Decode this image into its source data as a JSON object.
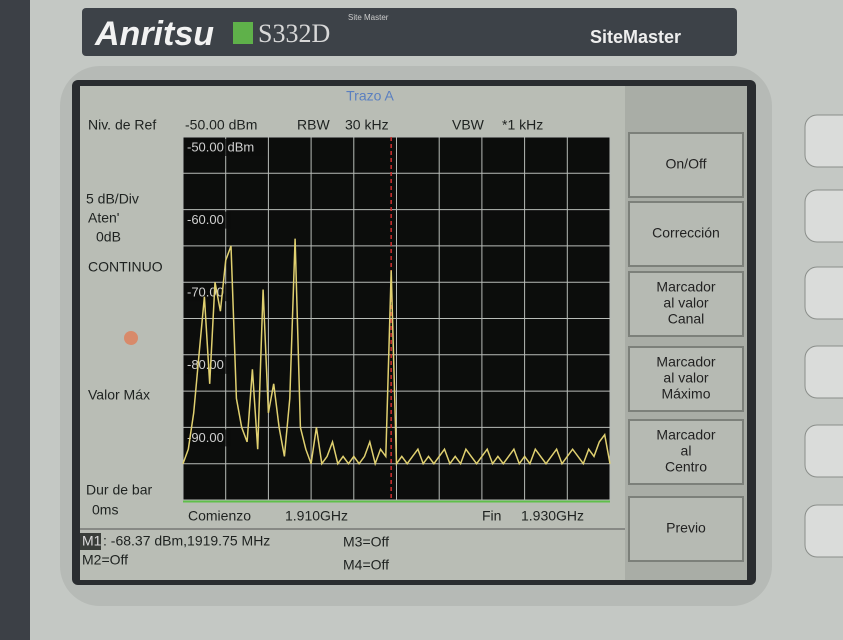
{
  "device": {
    "brand": "Anritsu",
    "model": "S332D",
    "model_sub": "Site Master",
    "product": "SiteMaster"
  },
  "screen": {
    "trace_title": "Trazo A",
    "ref_label": "Niv. de Ref",
    "ref_value": "-50.00 dBm",
    "rbw_label": "RBW",
    "rbw_value": "30 kHz",
    "vbw_label": "VBW",
    "vbw_value": "*1 kHz",
    "scale": "5 dB/Div",
    "atten_label": "Aten'",
    "atten_value": "0dB",
    "sweep_mode": "CONTINUO",
    "detection": "Valor Máx",
    "sweep_time_label": "Dur de bar",
    "sweep_time_value": "0ms",
    "start_label": "Comienzo",
    "start_value": "1.910GHz",
    "stop_label": "Fin",
    "stop_value": "1.930GHz",
    "marker_tag": "M1",
    "marker_readout": ": -68.37 dBm,1919.75 MHz",
    "m2": "M2=Off",
    "m3": "M3=Off",
    "m4": "M4=Off",
    "softkeys": [
      [
        "On/Off"
      ],
      [
        "Corrección"
      ],
      [
        "Marcador",
        "al valor",
        "Canal"
      ],
      [
        "Marcador",
        "al valor",
        "Máximo"
      ],
      [
        "Marcador",
        "al",
        "Centro"
      ],
      [
        "Previo"
      ]
    ]
  },
  "chart_data": {
    "type": "line",
    "color": "#e0d070",
    "x": [
      1.91,
      1.91025,
      1.9105,
      1.91075,
      1.911,
      1.91125,
      1.9115,
      1.91175,
      1.912,
      1.91225,
      1.9125,
      1.91275,
      1.913,
      1.91325,
      1.9135,
      1.91375,
      1.914,
      1.91425,
      1.9145,
      1.91475,
      1.915,
      1.91525,
      1.9155,
      1.91575,
      1.916,
      1.91625,
      1.9165,
      1.91675,
      1.917,
      1.91725,
      1.9175,
      1.91775,
      1.918,
      1.91825,
      1.9185,
      1.91875,
      1.919,
      1.91925,
      1.9195,
      1.91975,
      1.92,
      1.92025,
      1.9205,
      1.92075,
      1.921,
      1.92125,
      1.9215,
      1.92175,
      1.922,
      1.92225,
      1.9225,
      1.92275,
      1.923,
      1.92325,
      1.9235,
      1.92375,
      1.924,
      1.92425,
      1.9245,
      1.92475,
      1.925,
      1.92525,
      1.9255,
      1.92575,
      1.926,
      1.92625,
      1.9265,
      1.92675,
      1.927,
      1.92725,
      1.9275,
      1.92775,
      1.928,
      1.92825,
      1.9285,
      1.92875,
      1.929,
      1.92925,
      1.9295,
      1.92975,
      1.93
    ],
    "values": [
      -95,
      -93,
      -88,
      -80,
      -72,
      -84,
      -70,
      -74,
      -67,
      -65,
      -86,
      -90,
      -92,
      -82,
      -93,
      -71,
      -88,
      -84,
      -90,
      -94,
      -86,
      -64,
      -90,
      -93,
      -95,
      -90,
      -95,
      -94,
      -92,
      -95,
      -94,
      -95,
      -94,
      -95,
      -94,
      -92,
      -95,
      -93,
      -94,
      -68.37,
      -95,
      -94,
      -95,
      -94,
      -93,
      -95,
      -94,
      -95,
      -94,
      -93,
      -95,
      -94,
      -95,
      -93,
      -94,
      -95,
      -94,
      -93,
      -95,
      -94,
      -95,
      -94,
      -93,
      -95,
      -94,
      -95,
      -93,
      -94,
      -95,
      -94,
      -93,
      -95,
      -94,
      -93,
      -94,
      -95,
      -93,
      -94,
      -92,
      -91,
      -95
    ],
    "xlim": [
      1.91,
      1.93
    ],
    "ylim": [
      -100,
      -50
    ],
    "yticks": [
      {
        "value": -50,
        "label": "-50.00 dBm"
      },
      {
        "value": -60,
        "label": "-60.00"
      },
      {
        "value": -70,
        "label": "-70.00"
      },
      {
        "value": -80,
        "label": "-80.00"
      },
      {
        "value": -90,
        "label": "-90.00"
      }
    ],
    "ygrid": [
      -50,
      -55,
      -60,
      -65,
      -70,
      -75,
      -80,
      -85,
      -90,
      -95,
      -100
    ],
    "xgrid": [
      1.91,
      1.912,
      1.914,
      1.916,
      1.918,
      1.92,
      1.922,
      1.924,
      1.926,
      1.928,
      1.93
    ],
    "marker_x": 1.91975,
    "grid": true
  }
}
